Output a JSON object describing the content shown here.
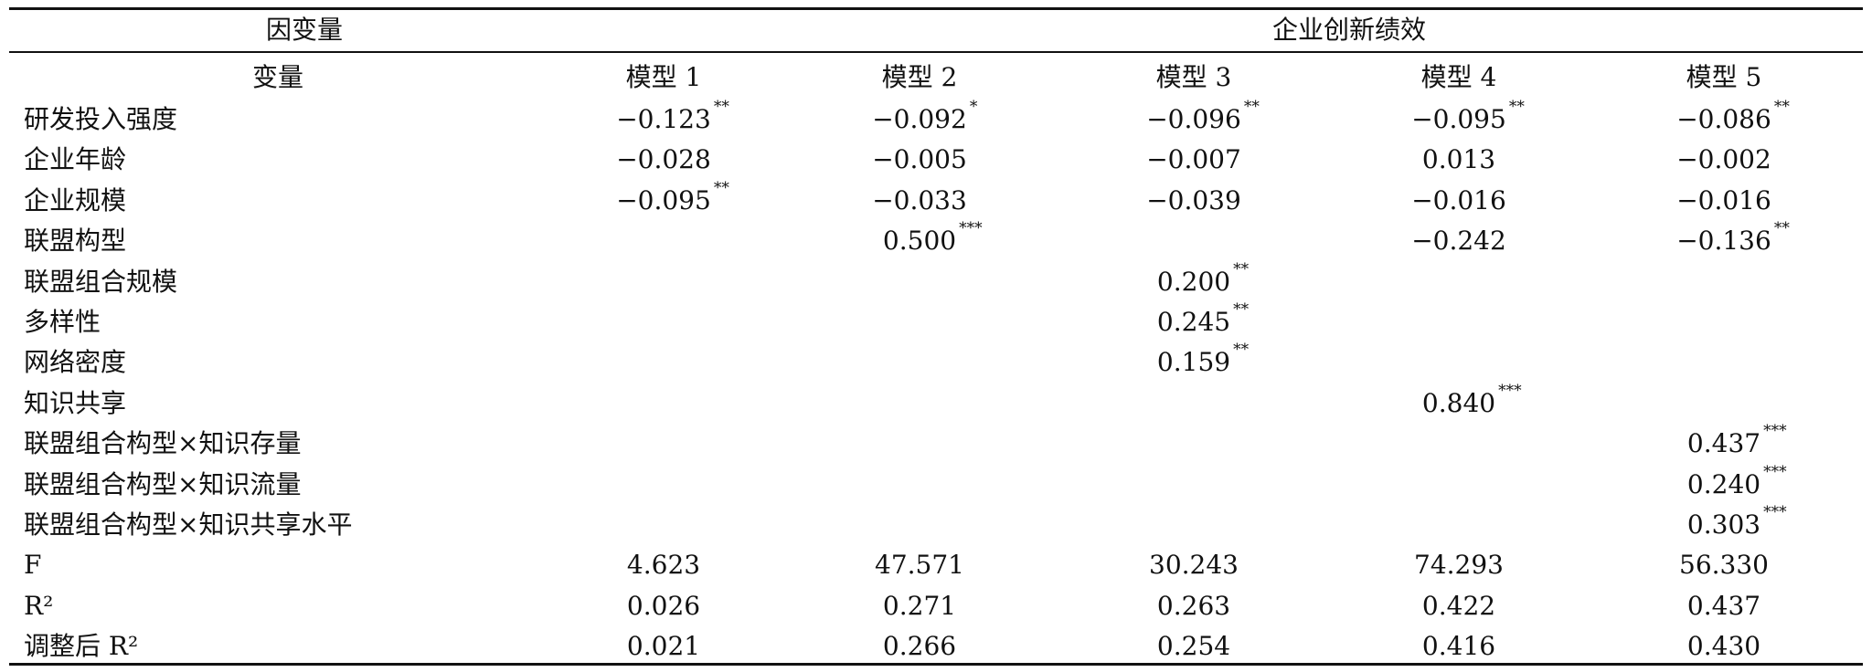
{
  "table": {
    "header": {
      "dependent_label": "因变量",
      "dependent_name": "企业创新绩效",
      "variable_label": "变量",
      "models": [
        "模型 1",
        "模型 2",
        "模型 3",
        "模型 4",
        "模型 5"
      ]
    },
    "rows": [
      {
        "label": "研发投入强度",
        "cells": [
          {
            "value": "−0.123",
            "sig": "**"
          },
          {
            "value": "−0.092",
            "sig": "*"
          },
          {
            "value": "−0.096",
            "sig": "**"
          },
          {
            "value": "−0.095",
            "sig": "**"
          },
          {
            "value": "−0.086",
            "sig": "**"
          }
        ]
      },
      {
        "label": "企业年龄",
        "cells": [
          {
            "value": "−0.028"
          },
          {
            "value": "−0.005"
          },
          {
            "value": "−0.007"
          },
          {
            "value": "0.013"
          },
          {
            "value": "−0.002"
          }
        ]
      },
      {
        "label": "企业规模",
        "cells": [
          {
            "value": "−0.095",
            "sig": "**"
          },
          {
            "value": "−0.033"
          },
          {
            "value": "−0.039"
          },
          {
            "value": "−0.016"
          },
          {
            "value": "−0.016"
          }
        ]
      },
      {
        "label": "联盟构型",
        "cells": [
          null,
          {
            "value": "0.500",
            "sig": "***"
          },
          null,
          {
            "value": "−0.242"
          },
          {
            "value": "−0.136",
            "sig": "**"
          }
        ]
      },
      {
        "label": "联盟组合规模",
        "cells": [
          null,
          null,
          {
            "value": "0.200",
            "sig": "**"
          },
          null,
          null
        ]
      },
      {
        "label": "多样性",
        "cells": [
          null,
          null,
          {
            "value": "0.245",
            "sig": "**"
          },
          null,
          null
        ]
      },
      {
        "label": "网络密度",
        "cells": [
          null,
          null,
          {
            "value": "0.159",
            "sig": "**"
          },
          null,
          null
        ]
      },
      {
        "label": "知识共享",
        "cells": [
          null,
          null,
          null,
          {
            "value": "0.840",
            "sig": "***"
          },
          null
        ]
      },
      {
        "label": "联盟组合构型×知识存量",
        "cells": [
          null,
          null,
          null,
          null,
          {
            "value": "0.437",
            "sig": "***"
          }
        ]
      },
      {
        "label": "联盟组合构型×知识流量",
        "cells": [
          null,
          null,
          null,
          null,
          {
            "value": "0.240",
            "sig": "***"
          }
        ]
      },
      {
        "label": "联盟组合构型×知识共享水平",
        "cells": [
          null,
          null,
          null,
          null,
          {
            "value": "0.303",
            "sig": "***"
          }
        ]
      },
      {
        "label": "F",
        "cells": [
          {
            "value": "4.623"
          },
          {
            "value": "47.571"
          },
          {
            "value": "30.243"
          },
          {
            "value": "74.293"
          },
          {
            "value": "56.330"
          }
        ]
      },
      {
        "label": "R²",
        "cells": [
          {
            "value": "0.026"
          },
          {
            "value": "0.271"
          },
          {
            "value": "0.263"
          },
          {
            "value": "0.422"
          },
          {
            "value": "0.437"
          }
        ]
      },
      {
        "label": "调整后 R²",
        "cells": [
          {
            "value": "0.021"
          },
          {
            "value": "0.266"
          },
          {
            "value": "0.254"
          },
          {
            "value": "0.416"
          },
          {
            "value": "0.430"
          }
        ]
      }
    ]
  }
}
